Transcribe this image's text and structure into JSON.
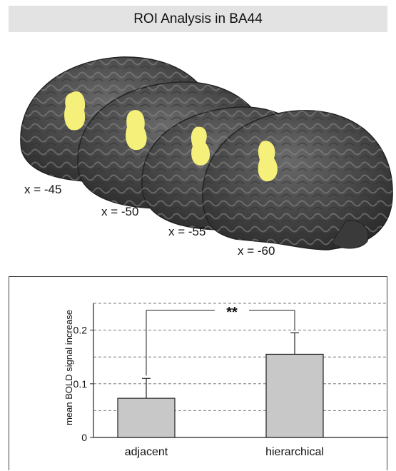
{
  "header": {
    "title": "ROI Analysis in BA44"
  },
  "brain_slices": [
    {
      "label": "x = -45"
    },
    {
      "label": "x = -50"
    },
    {
      "label": "x = -55"
    },
    {
      "label": "x = -60"
    }
  ],
  "colors": {
    "title_bg": "#e3e3e3",
    "bar_fill": "#c8c8c8",
    "roi": "#f5f07a",
    "cortex": "#4a4a4a"
  },
  "chart_data": {
    "type": "bar",
    "categories": [
      "adjacent",
      "hierarchical"
    ],
    "values": [
      0.073,
      0.155
    ],
    "errors": [
      0.037,
      0.04
    ],
    "ylabel": "mean BOLD signal increase",
    "ylim": [
      0,
      0.25
    ],
    "yticks": [
      0,
      0.1,
      0.2
    ],
    "yticks_labels": [
      "0",
      "0.1",
      "0.2"
    ],
    "grid_dashed": [
      0.05,
      0.1,
      0.15,
      0.2,
      0.25
    ],
    "significance": {
      "label": "**",
      "between": [
        "adjacent",
        "hierarchical"
      ]
    }
  }
}
